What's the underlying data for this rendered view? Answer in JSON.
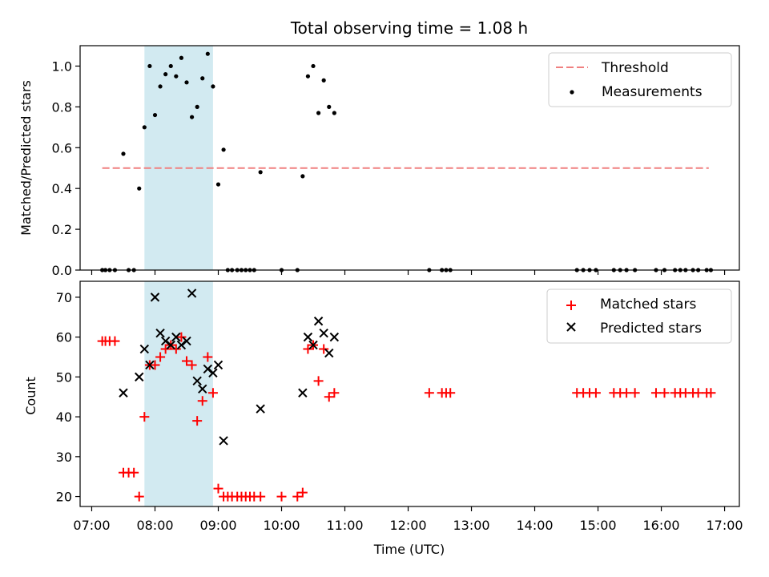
{
  "figure": {
    "title": "Total observing time = 1.08 h"
  },
  "colors": {
    "threshold": "#f08080",
    "measurement": "#000000",
    "matched": "#ff0000",
    "predicted": "#000000",
    "shade": "#add8e6"
  },
  "chart_data": [
    {
      "type": "scatter",
      "panel": "top",
      "title": "Total observing time = 1.08 h",
      "xlabel": "",
      "ylabel": "Matched/Predicted stars",
      "xlim": [
        "06:49",
        "17:14"
      ],
      "ylim": [
        0,
        1.1
      ],
      "yticks": [
        0.0,
        0.2,
        0.4,
        0.6,
        0.8,
        1.0
      ],
      "ytick_labels": [
        "0.0",
        "0.2",
        "0.4",
        "0.6",
        "0.8",
        "1.0"
      ],
      "shaded_span": [
        "07:50",
        "08:55"
      ],
      "legend_placement": "top-right",
      "series": [
        {
          "name": "Threshold",
          "kind": "line",
          "style": "dashed",
          "x": [
            "07:10",
            "16:45"
          ],
          "y": [
            0.5,
            0.5
          ]
        },
        {
          "name": "Measurements",
          "kind": "scatter",
          "marker": "dot",
          "points": [
            {
              "x": "07:10",
              "y": 0.0
            },
            {
              "x": "07:13",
              "y": 0.0
            },
            {
              "x": "07:17",
              "y": 0.0
            },
            {
              "x": "07:22",
              "y": 0.0
            },
            {
              "x": "07:30",
              "y": 0.57
            },
            {
              "x": "07:35",
              "y": 0.0
            },
            {
              "x": "07:40",
              "y": 0.0
            },
            {
              "x": "07:45",
              "y": 0.4
            },
            {
              "x": "07:50",
              "y": 0.7
            },
            {
              "x": "07:55",
              "y": 1.0
            },
            {
              "x": "08:00",
              "y": 0.76
            },
            {
              "x": "08:05",
              "y": 0.9
            },
            {
              "x": "08:10",
              "y": 0.96
            },
            {
              "x": "08:15",
              "y": 1.0
            },
            {
              "x": "08:20",
              "y": 0.95
            },
            {
              "x": "08:25",
              "y": 1.04
            },
            {
              "x": "08:30",
              "y": 0.92
            },
            {
              "x": "08:35",
              "y": 0.75
            },
            {
              "x": "08:40",
              "y": 0.8
            },
            {
              "x": "08:45",
              "y": 0.94
            },
            {
              "x": "08:50",
              "y": 1.06
            },
            {
              "x": "08:55",
              "y": 0.9
            },
            {
              "x": "09:00",
              "y": 0.42
            },
            {
              "x": "09:05",
              "y": 0.59
            },
            {
              "x": "09:09",
              "y": 0.0
            },
            {
              "x": "09:13",
              "y": 0.0
            },
            {
              "x": "09:18",
              "y": 0.0
            },
            {
              "x": "09:22",
              "y": 0.0
            },
            {
              "x": "09:26",
              "y": 0.0
            },
            {
              "x": "09:30",
              "y": 0.0
            },
            {
              "x": "09:34",
              "y": 0.0
            },
            {
              "x": "09:40",
              "y": 0.48
            },
            {
              "x": "10:00",
              "y": 0.0
            },
            {
              "x": "10:15",
              "y": 0.0
            },
            {
              "x": "10:20",
              "y": 0.46
            },
            {
              "x": "10:25",
              "y": 0.95
            },
            {
              "x": "10:30",
              "y": 1.0
            },
            {
              "x": "10:35",
              "y": 0.77
            },
            {
              "x": "10:40",
              "y": 0.93
            },
            {
              "x": "10:45",
              "y": 0.8
            },
            {
              "x": "10:50",
              "y": 0.77
            },
            {
              "x": "12:20",
              "y": 0.0
            },
            {
              "x": "12:32",
              "y": 0.0
            },
            {
              "x": "12:36",
              "y": 0.0
            },
            {
              "x": "12:40",
              "y": 0.0
            },
            {
              "x": "14:40",
              "y": 0.0
            },
            {
              "x": "14:46",
              "y": 0.0
            },
            {
              "x": "14:52",
              "y": 0.0
            },
            {
              "x": "14:58",
              "y": 0.0
            },
            {
              "x": "15:15",
              "y": 0.0
            },
            {
              "x": "15:21",
              "y": 0.0
            },
            {
              "x": "15:27",
              "y": 0.0
            },
            {
              "x": "15:35",
              "y": 0.0
            },
            {
              "x": "15:55",
              "y": 0.0
            },
            {
              "x": "16:03",
              "y": 0.0
            },
            {
              "x": "16:13",
              "y": 0.0
            },
            {
              "x": "16:18",
              "y": 0.0
            },
            {
              "x": "16:23",
              "y": 0.0
            },
            {
              "x": "16:30",
              "y": 0.0
            },
            {
              "x": "16:35",
              "y": 0.0
            },
            {
              "x": "16:43",
              "y": 0.0
            },
            {
              "x": "16:47",
              "y": 0.0
            }
          ]
        }
      ]
    },
    {
      "type": "scatter",
      "panel": "bottom",
      "title": "",
      "xlabel": "Time (UTC)",
      "ylabel": "Count",
      "xlim": [
        "06:49",
        "17:14"
      ],
      "ylim": [
        17.5,
        74
      ],
      "xticks": [
        "07:00",
        "08:00",
        "09:00",
        "10:00",
        "11:00",
        "12:00",
        "13:00",
        "14:00",
        "15:00",
        "16:00",
        "17:00"
      ],
      "xtick_labels": [
        "07:00",
        "08:00",
        "09:00",
        "10:00",
        "11:00",
        "12:00",
        "13:00",
        "14:00",
        "15:00",
        "16:00",
        "17:00"
      ],
      "yticks": [
        20,
        30,
        40,
        50,
        60,
        70
      ],
      "ytick_labels": [
        "20",
        "30",
        "40",
        "50",
        "60",
        "70"
      ],
      "shaded_span": [
        "07:50",
        "08:55"
      ],
      "legend_placement": "top-right",
      "series": [
        {
          "name": "Matched stars",
          "kind": "scatter",
          "marker": "plus",
          "points": [
            {
              "x": "07:10",
              "y": 59
            },
            {
              "x": "07:13",
              "y": 59
            },
            {
              "x": "07:17",
              "y": 59
            },
            {
              "x": "07:22",
              "y": 59
            },
            {
              "x": "07:30",
              "y": 26
            },
            {
              "x": "07:35",
              "y": 26
            },
            {
              "x": "07:40",
              "y": 26
            },
            {
              "x": "07:45",
              "y": 20
            },
            {
              "x": "07:50",
              "y": 40
            },
            {
              "x": "07:55",
              "y": 53
            },
            {
              "x": "08:00",
              "y": 53
            },
            {
              "x": "08:05",
              "y": 55
            },
            {
              "x": "08:10",
              "y": 57
            },
            {
              "x": "08:15",
              "y": 58
            },
            {
              "x": "08:20",
              "y": 57
            },
            {
              "x": "08:25",
              "y": 60
            },
            {
              "x": "08:30",
              "y": 54
            },
            {
              "x": "08:35",
              "y": 53
            },
            {
              "x": "08:40",
              "y": 39
            },
            {
              "x": "08:45",
              "y": 44
            },
            {
              "x": "08:50",
              "y": 55
            },
            {
              "x": "08:55",
              "y": 46
            },
            {
              "x": "09:00",
              "y": 22
            },
            {
              "x": "09:05",
              "y": 20
            },
            {
              "x": "09:09",
              "y": 20
            },
            {
              "x": "09:13",
              "y": 20
            },
            {
              "x": "09:18",
              "y": 20
            },
            {
              "x": "09:22",
              "y": 20
            },
            {
              "x": "09:26",
              "y": 20
            },
            {
              "x": "09:30",
              "y": 20
            },
            {
              "x": "09:34",
              "y": 20
            },
            {
              "x": "09:40",
              "y": 20
            },
            {
              "x": "10:00",
              "y": 20
            },
            {
              "x": "10:15",
              "y": 20
            },
            {
              "x": "10:20",
              "y": 21
            },
            {
              "x": "10:25",
              "y": 57
            },
            {
              "x": "10:30",
              "y": 58
            },
            {
              "x": "10:35",
              "y": 49
            },
            {
              "x": "10:40",
              "y": 57
            },
            {
              "x": "10:45",
              "y": 45
            },
            {
              "x": "10:50",
              "y": 46
            },
            {
              "x": "12:20",
              "y": 46
            },
            {
              "x": "12:32",
              "y": 46
            },
            {
              "x": "12:36",
              "y": 46
            },
            {
              "x": "12:40",
              "y": 46
            },
            {
              "x": "14:40",
              "y": 46
            },
            {
              "x": "14:46",
              "y": 46
            },
            {
              "x": "14:52",
              "y": 46
            },
            {
              "x": "14:58",
              "y": 46
            },
            {
              "x": "15:15",
              "y": 46
            },
            {
              "x": "15:21",
              "y": 46
            },
            {
              "x": "15:27",
              "y": 46
            },
            {
              "x": "15:35",
              "y": 46
            },
            {
              "x": "15:55",
              "y": 46
            },
            {
              "x": "16:03",
              "y": 46
            },
            {
              "x": "16:13",
              "y": 46
            },
            {
              "x": "16:18",
              "y": 46
            },
            {
              "x": "16:23",
              "y": 46
            },
            {
              "x": "16:30",
              "y": 46
            },
            {
              "x": "16:35",
              "y": 46
            },
            {
              "x": "16:43",
              "y": 46
            },
            {
              "x": "16:47",
              "y": 46
            }
          ]
        },
        {
          "name": "Predicted stars",
          "kind": "scatter",
          "marker": "x",
          "points": [
            {
              "x": "07:30",
              "y": 46
            },
            {
              "x": "07:45",
              "y": 50
            },
            {
              "x": "07:50",
              "y": 57
            },
            {
              "x": "07:55",
              "y": 53
            },
            {
              "x": "08:00",
              "y": 70
            },
            {
              "x": "08:05",
              "y": 61
            },
            {
              "x": "08:10",
              "y": 59
            },
            {
              "x": "08:15",
              "y": 58
            },
            {
              "x": "08:20",
              "y": 60
            },
            {
              "x": "08:25",
              "y": 58
            },
            {
              "x": "08:30",
              "y": 59
            },
            {
              "x": "08:35",
              "y": 71
            },
            {
              "x": "08:40",
              "y": 49
            },
            {
              "x": "08:45",
              "y": 47
            },
            {
              "x": "08:50",
              "y": 52
            },
            {
              "x": "08:55",
              "y": 51
            },
            {
              "x": "09:00",
              "y": 53
            },
            {
              "x": "09:05",
              "y": 34
            },
            {
              "x": "09:40",
              "y": 42
            },
            {
              "x": "10:20",
              "y": 46
            },
            {
              "x": "10:25",
              "y": 60
            },
            {
              "x": "10:30",
              "y": 58
            },
            {
              "x": "10:35",
              "y": 64
            },
            {
              "x": "10:40",
              "y": 61
            },
            {
              "x": "10:45",
              "y": 56
            },
            {
              "x": "10:50",
              "y": 60
            }
          ]
        }
      ]
    }
  ]
}
